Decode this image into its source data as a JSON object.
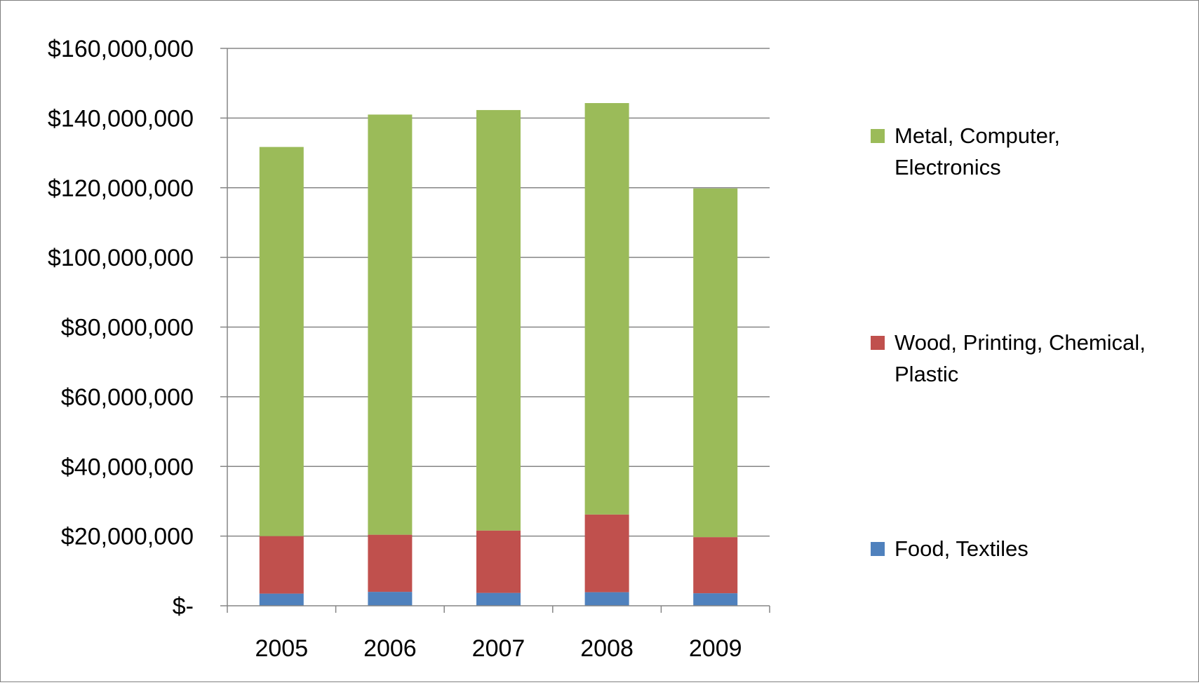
{
  "chart_data": {
    "type": "bar",
    "stacked": true,
    "categories": [
      "2005",
      "2006",
      "2007",
      "2008",
      "2009"
    ],
    "series": [
      {
        "name": "Food, Textiles",
        "color": "#4f81bd",
        "values": [
          3500000,
          4000000,
          3700000,
          3900000,
          3600000
        ]
      },
      {
        "name": "Wood, Printing, Chemical, Plastic",
        "color": "#c0504d",
        "values": [
          16500000,
          16400000,
          17900000,
          22300000,
          16100000
        ]
      },
      {
        "name": "Metal, Computer, Electronics",
        "color": "#9bbb59",
        "values": [
          111700000,
          120600000,
          120700000,
          118100000,
          100100000
        ]
      }
    ],
    "ylim": [
      0,
      160000000
    ],
    "yticks": [
      0,
      20000000,
      40000000,
      60000000,
      80000000,
      100000000,
      120000000,
      140000000,
      160000000
    ],
    "ytick_labels": [
      "$-",
      "$20,000,000",
      "$40,000,000",
      "$60,000,000",
      "$80,000,000",
      "$100,000,000",
      "$120,000,000",
      "$140,000,000",
      "$160,000,000"
    ],
    "legend_entries": [
      {
        "lines": [
          "Metal, Computer,",
          "Electronics"
        ],
        "color": "#9bbb59"
      },
      {
        "lines": [
          "Wood, Printing, Chemical,",
          "Plastic"
        ],
        "color": "#c0504d"
      },
      {
        "lines": [
          "Food, Textiles"
        ],
        "color": "#4f81bd"
      }
    ],
    "legend_position": "right",
    "grid": true,
    "title": "",
    "xlabel": "",
    "ylabel": ""
  }
}
